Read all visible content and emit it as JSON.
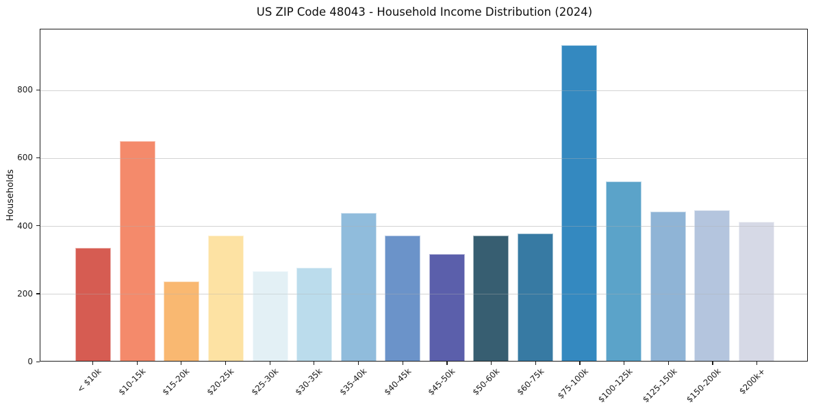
{
  "chart_data": {
    "type": "bar",
    "title": "US ZIP Code 48043 - Household Income Distribution (2024)",
    "xlabel": "",
    "ylabel": "Households",
    "categories": [
      "< $10k",
      "$10-15k",
      "$15-20k",
      "$20-25k",
      "$25-30k",
      "$30-35k",
      "$35-40k",
      "$40-45k",
      "$45-50k",
      "$50-60k",
      "$60-75k",
      "$75-100k",
      "$100-125k",
      "$125-150k",
      "$150-200k",
      "$200k+"
    ],
    "values": [
      333,
      648,
      234,
      369,
      265,
      275,
      435,
      369,
      315,
      369,
      375,
      930,
      529,
      440,
      444,
      410
    ],
    "bar_colors": [
      "#d65c52",
      "#f48a6b",
      "#f9b871",
      "#fde2a3",
      "#e3f0f5",
      "#bbdcec",
      "#90bcdc",
      "#6b93c9",
      "#5b5fab",
      "#375e71",
      "#377aa3",
      "#3489c0",
      "#5ba3c9",
      "#8fb4d6",
      "#b4c5de",
      "#d6d9e6"
    ],
    "ylim": [
      0,
      980
    ],
    "yticks": [
      0,
      200,
      400,
      600,
      800
    ],
    "grid": "horizontal",
    "legend": "none",
    "plot_background": "#ffffff",
    "axis_color": "#1a1a1a",
    "grid_color": "#e9e9e9"
  }
}
